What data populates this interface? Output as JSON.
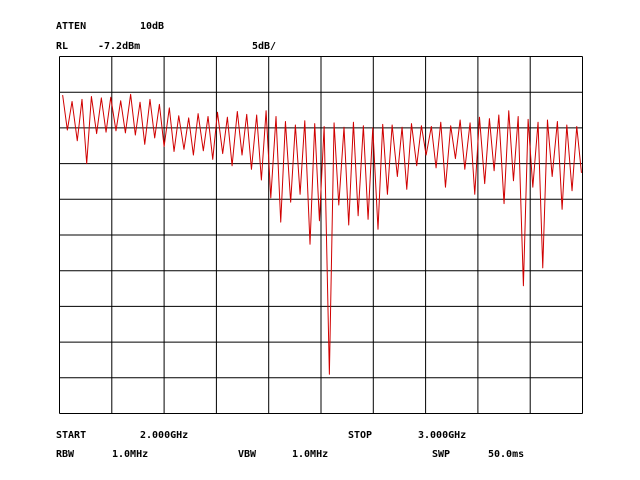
{
  "chart_data": {
    "type": "line",
    "annotations": [
      "ATTEN",
      "10dB",
      "RL",
      "-7.2dBm",
      "5dB/",
      "START",
      "2.000GHz",
      "STOP",
      "3.000GHz",
      "RBW",
      "1.0MHz",
      "VBW",
      "1.0MHz",
      "SWP",
      "50.0ms"
    ],
    "x": [
      2.006,
      2.015,
      2.024,
      2.034,
      2.043,
      2.052,
      2.061,
      2.071,
      2.08,
      2.089,
      2.098,
      2.108,
      2.117,
      2.126,
      2.136,
      2.145,
      2.154,
      2.163,
      2.173,
      2.182,
      2.191,
      2.2,
      2.21,
      2.219,
      2.228,
      2.238,
      2.247,
      2.256,
      2.265,
      2.275,
      2.284,
      2.293,
      2.302,
      2.312,
      2.321,
      2.33,
      2.34,
      2.349,
      2.358,
      2.367,
      2.377,
      2.386,
      2.395,
      2.404,
      2.414,
      2.423,
      2.432,
      2.442,
      2.451,
      2.46,
      2.469,
      2.479,
      2.488,
      2.497,
      2.506,
      2.516,
      2.525,
      2.534,
      2.544,
      2.553,
      2.562,
      2.571,
      2.581,
      2.59,
      2.599,
      2.609,
      2.618,
      2.627,
      2.636,
      2.646,
      2.655,
      2.664,
      2.673,
      2.683,
      2.692,
      2.701,
      2.711,
      2.72,
      2.729,
      2.738,
      2.748,
      2.757,
      2.766,
      2.775,
      2.785,
      2.794,
      2.803,
      2.813,
      2.822,
      2.831,
      2.84,
      2.85,
      2.859,
      2.868,
      2.877,
      2.887,
      2.896,
      2.905,
      2.915,
      2.924,
      2.933,
      2.942,
      2.952,
      2.961,
      2.97,
      2.98,
      2.989,
      2.998
    ],
    "series": [
      {
        "color": "#d00000",
        "values": [
          -12.6,
          -17.5,
          -13.5,
          -19.0,
          -13.2,
          -22.2,
          -12.8,
          -18.0,
          -13.0,
          -17.8,
          -12.9,
          -17.6,
          -13.4,
          -17.9,
          -12.5,
          -18.2,
          -13.6,
          -19.5,
          -13.2,
          -18.6,
          -13.9,
          -19.8,
          -14.4,
          -20.5,
          -15.5,
          -20.2,
          -15.8,
          -21.0,
          -15.2,
          -20.4,
          -15.6,
          -21.6,
          -15.0,
          -20.8,
          -15.7,
          -22.5,
          -14.9,
          -21.0,
          -15.3,
          -23.0,
          -15.4,
          -24.5,
          -14.8,
          -27.0,
          -15.6,
          -30.4,
          -16.3,
          -27.6,
          -16.8,
          -26.5,
          -16.2,
          -33.5,
          -16.6,
          -30.2,
          -17.0,
          -51.7,
          -16.5,
          -28.0,
          -17.1,
          -30.8,
          -16.4,
          -29.5,
          -16.9,
          -30.0,
          -17.2,
          -31.4,
          -16.7,
          -26.5,
          -16.8,
          -24.0,
          -17.1,
          -25.8,
          -16.6,
          -22.5,
          -16.9,
          -21.0,
          -17.0,
          -22.8,
          -16.4,
          -25.5,
          -16.9,
          -21.5,
          -16.1,
          -23.0,
          -16.5,
          -26.5,
          -15.7,
          -25.0,
          -15.9,
          -23.2,
          -15.4,
          -27.8,
          -14.8,
          -24.6,
          -15.6,
          -39.3,
          -16.0,
          -25.5,
          -16.4,
          -36.8,
          -16.1,
          -24.0,
          -16.3,
          -28.6,
          -16.8,
          -26.0,
          -17.0,
          -23.5
        ]
      }
    ],
    "xlim": [
      2.0,
      3.0
    ],
    "ylim": [
      -57.2,
      -7.2
    ],
    "xticks": [
      2.0,
      2.1,
      2.2,
      2.3,
      2.4,
      2.5,
      2.6,
      2.7,
      2.8,
      2.9,
      3.0
    ],
    "yticks": [
      -57.2,
      -52.2,
      -47.2,
      -42.2,
      -37.2,
      -32.2,
      -27.2,
      -22.2,
      -17.2,
      -12.2,
      -7.2
    ],
    "grid": true
  }
}
